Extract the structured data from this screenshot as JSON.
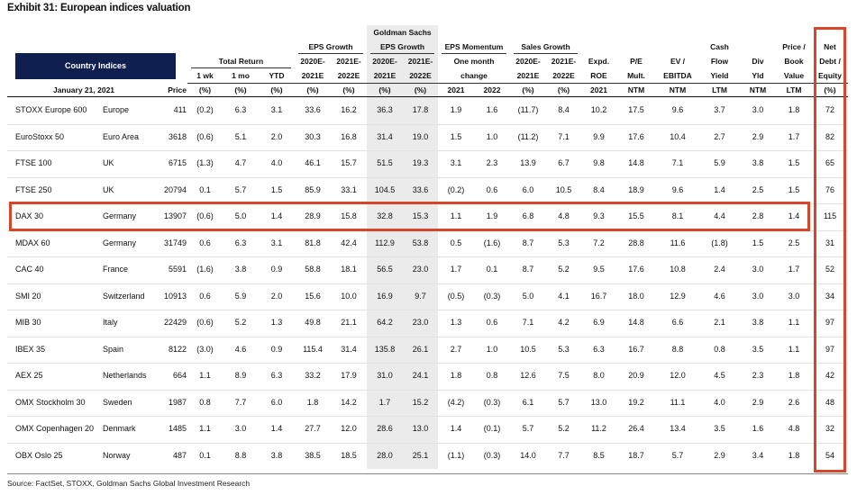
{
  "title": "Exhibit 31: European indices valuation",
  "header": {
    "country_indices": "Country Indices",
    "rows": [
      [
        "Goldman Sachs"
      ],
      [
        "EPS Growth",
        "EPS Growth",
        "EPS Momentum",
        "Sales Growth",
        "Cash",
        "Price /",
        "Net"
      ],
      [
        "Total Return",
        "2020E-",
        "2021E-",
        "2020E-",
        "2021E-",
        "One month",
        "2020E-",
        "2021E-",
        "Expd.",
        "P/E",
        "EV /",
        "Flow",
        "Div",
        "Book",
        "Debt /"
      ],
      [
        "1 wk",
        "1 mo",
        "YTD",
        "2021E",
        "2022E",
        "2021E",
        "2022E",
        "change",
        "2021E",
        "2022E",
        "ROE",
        "Mult.",
        "EBITDA",
        "Yield",
        "Yld",
        "Value",
        "Equity"
      ],
      [
        "January 21, 2021",
        "Price",
        "(%)",
        "(%)",
        "(%)",
        "(%)",
        "(%)",
        "(%)",
        "(%)",
        "2021",
        "2022",
        "(%)",
        "(%)",
        "2021",
        "NTM",
        "NTM",
        "LTM",
        "NTM",
        "LTM",
        "(%)"
      ]
    ]
  },
  "table": {
    "rows": [
      [
        "STOXX Europe 600",
        "Europe",
        "411",
        "(0.2)",
        "6.3",
        "3.1",
        "33.6",
        "16.2",
        "36.3",
        "17.8",
        "1.9",
        "1.6",
        "(11.7)",
        "8.4",
        "10.2",
        "17.5",
        "9.6",
        "3.7",
        "3.0",
        "1.8",
        "72"
      ],
      [
        "EuroStoxx 50",
        "Euro Area",
        "3618",
        "(0.6)",
        "5.1",
        "2.0",
        "30.3",
        "16.8",
        "31.4",
        "19.0",
        "1.5",
        "1.0",
        "(11.2)",
        "7.1",
        "9.9",
        "17.6",
        "10.4",
        "2.7",
        "2.9",
        "1.7",
        "82"
      ],
      [
        "FTSE 100",
        "UK",
        "6715",
        "(1.3)",
        "4.7",
        "4.0",
        "46.1",
        "15.7",
        "51.5",
        "19.3",
        "3.1",
        "2.3",
        "13.9",
        "6.7",
        "9.8",
        "14.8",
        "7.1",
        "5.9",
        "3.8",
        "1.5",
        "65"
      ],
      [
        "FTSE 250",
        "UK",
        "20794",
        "0.1",
        "5.7",
        "1.5",
        "85.9",
        "33.1",
        "104.5",
        "33.6",
        "(0.2)",
        "0.6",
        "6.0",
        "10.5",
        "8.4",
        "18.9",
        "9.6",
        "1.4",
        "2.5",
        "1.5",
        "76"
      ],
      [
        "DAX 30",
        "Germany",
        "13907",
        "(0.6)",
        "5.0",
        "1.4",
        "28.9",
        "15.8",
        "32.8",
        "15.3",
        "1.1",
        "1.9",
        "6.8",
        "4.8",
        "9.3",
        "15.5",
        "8.1",
        "4.4",
        "2.8",
        "1.4",
        "115"
      ],
      [
        "MDAX 60",
        "Germany",
        "31749",
        "0.6",
        "6.3",
        "3.1",
        "81.8",
        "42.4",
        "112.9",
        "53.8",
        "0.5",
        "(1.6)",
        "8.7",
        "5.3",
        "7.2",
        "28.8",
        "11.6",
        "(1.8)",
        "1.5",
        "2.5",
        "31"
      ],
      [
        "CAC 40",
        "France",
        "5591",
        "(1.6)",
        "3.8",
        "0.9",
        "58.8",
        "18.1",
        "56.5",
        "23.0",
        "1.7",
        "0.1",
        "8.7",
        "5.2",
        "9.5",
        "17.6",
        "10.8",
        "2.4",
        "3.0",
        "1.7",
        "52"
      ],
      [
        "SMI 20",
        "Switzerland",
        "10913",
        "0.6",
        "5.9",
        "2.0",
        "15.6",
        "10.0",
        "16.9",
        "9.7",
        "(0.5)",
        "(0.3)",
        "5.0",
        "4.1",
        "16.7",
        "18.0",
        "12.9",
        "4.6",
        "3.0",
        "3.0",
        "34"
      ],
      [
        "MIB 30",
        "Italy",
        "22429",
        "(0.6)",
        "5.2",
        "1.3",
        "49.8",
        "21.1",
        "64.2",
        "23.0",
        "1.3",
        "0.6",
        "7.1",
        "4.2",
        "6.9",
        "14.8",
        "6.6",
        "2.1",
        "3.8",
        "1.1",
        "97"
      ],
      [
        "IBEX 35",
        "Spain",
        "8122",
        "(3.0)",
        "4.6",
        "0.9",
        "115.4",
        "31.4",
        "135.8",
        "26.1",
        "2.7",
        "1.0",
        "10.5",
        "5.3",
        "6.3",
        "16.7",
        "8.8",
        "0.8",
        "3.5",
        "1.1",
        "97"
      ],
      [
        "AEX 25",
        "Netherlands",
        "664",
        "1.1",
        "8.9",
        "6.3",
        "33.2",
        "17.9",
        "31.0",
        "24.1",
        "1.8",
        "0.8",
        "12.6",
        "7.5",
        "8.0",
        "20.9",
        "12.0",
        "4.5",
        "2.3",
        "1.8",
        "42"
      ],
      [
        "OMX Stockholm 30",
        "Sweden",
        "1987",
        "0.8",
        "7.7",
        "6.0",
        "1.8",
        "14.2",
        "1.7",
        "15.2",
        "(4.2)",
        "(0.3)",
        "6.1",
        "5.7",
        "13.0",
        "19.2",
        "11.1",
        "4.0",
        "2.9",
        "2.6",
        "48"
      ],
      [
        "OMX Copenhagen 20",
        "Denmark",
        "1485",
        "1.1",
        "3.0",
        "1.4",
        "27.7",
        "12.0",
        "28.6",
        "13.0",
        "1.4",
        "(0.1)",
        "5.7",
        "5.2",
        "11.2",
        "26.4",
        "13.4",
        "3.5",
        "1.6",
        "4.8",
        "32"
      ],
      [
        "OBX Oslo 25",
        "Norway",
        "487",
        "0.1",
        "8.8",
        "3.8",
        "38.5",
        "18.5",
        "28.0",
        "25.1",
        "(1.1)",
        "(0.3)",
        "14.0",
        "7.7",
        "8.5",
        "18.7",
        "5.7",
        "2.9",
        "3.4",
        "1.8",
        "54"
      ]
    ]
  },
  "source": "Source: FactSet, STOXX, Goldman Sachs Global Investment Research"
}
